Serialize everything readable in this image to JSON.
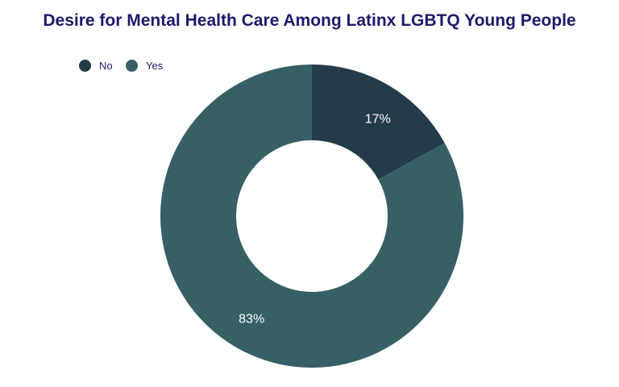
{
  "chart_data": {
    "type": "pie",
    "donut": true,
    "title": "Desire for Mental Health Care Among Latinx LGBTQ Young People",
    "categories": [
      "No",
      "Yes"
    ],
    "values": [
      17,
      83
    ],
    "labels": [
      "17%",
      "83%"
    ],
    "colors": [
      "#243b4a",
      "#365f66"
    ],
    "legend_position": "top-left"
  }
}
